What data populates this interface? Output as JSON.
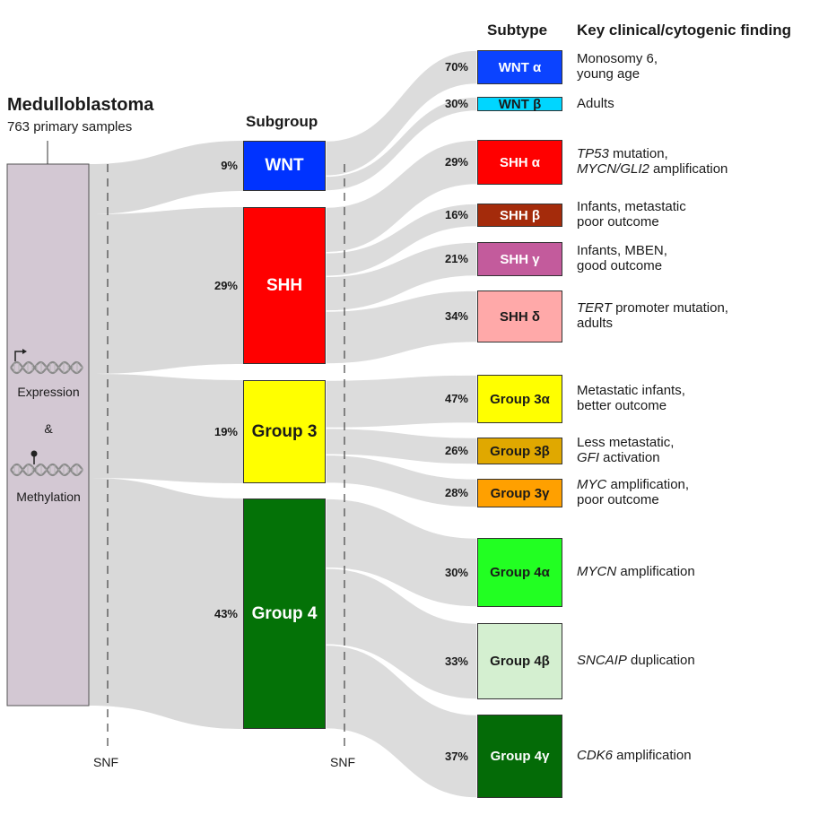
{
  "title": "Medulloblastoma",
  "subtitle": "763 primary samples",
  "headers": {
    "subgroup": "Subgroup",
    "subtype": "Subtype",
    "finding": "Key clinical/cytogenic finding"
  },
  "snf_label": "SNF",
  "left_labels": {
    "expression": "Expression",
    "ampersand": "&",
    "methylation": "Methylation"
  },
  "subgroups": [
    {
      "name": "WNT",
      "pct": "9%",
      "color": "#0033ff",
      "text_color": "#ffffff"
    },
    {
      "name": "SHH",
      "pct": "29%",
      "color": "#ff0000",
      "text_color": "#ffffff"
    },
    {
      "name": "Group 3",
      "pct": "19%",
      "color": "#ffff00",
      "text_color": "#1a1a1a"
    },
    {
      "name": "Group 4",
      "pct": "43%",
      "color": "#047207",
      "text_color": "#ffffff"
    }
  ],
  "subtypes": [
    {
      "name": "WNT α",
      "pct": "70%",
      "color": "#0b43ff",
      "text_color": "#ffffff",
      "finding": [
        {
          "text": "Monosomy 6,"
        },
        {
          "text": "young age"
        }
      ]
    },
    {
      "name": "WNT β",
      "pct": "30%",
      "color": "#00d6ff",
      "text_color": "#1a1a1a",
      "finding": [
        {
          "text": "Adults"
        }
      ]
    },
    {
      "name": "SHH α",
      "pct": "29%",
      "color": "#ff0000",
      "text_color": "#ffffff",
      "finding": [
        {
          "italic": "TP53",
          "text": " mutation,"
        },
        {
          "italic": "MYCN/GLI2",
          "text": " amplification"
        }
      ]
    },
    {
      "name": "SHH β",
      "pct": "16%",
      "color": "#a42b0b",
      "text_color": "#ffffff",
      "finding": [
        {
          "text": "Infants,  metastatic"
        },
        {
          "text": "poor outcome"
        }
      ]
    },
    {
      "name": "SHH γ",
      "pct": "21%",
      "color": "#c35b9c",
      "text_color": "#ffffff",
      "finding": [
        {
          "text": "Infants, MBEN,"
        },
        {
          "text": "good outcome"
        }
      ]
    },
    {
      "name": "SHH δ",
      "pct": "34%",
      "color": "#ffa9a9",
      "text_color": "#1a1a1a",
      "finding": [
        {
          "italic": "TERT",
          "text": " promoter  mutation,"
        },
        {
          "text": "adults"
        }
      ]
    },
    {
      "name": "Group 3α",
      "pct": "47%",
      "color": "#ffff00",
      "text_color": "#1a1a1a",
      "finding": [
        {
          "text": "Metastatic infants,"
        },
        {
          "text": "better outcome"
        }
      ]
    },
    {
      "name": "Group 3β",
      "pct": "26%",
      "color": "#e0a800",
      "text_color": "#1a1a1a",
      "finding": [
        {
          "text": "Less metastatic,"
        },
        {
          "italic": "GFI",
          "text": " activation"
        }
      ]
    },
    {
      "name": "Group 3γ",
      "pct": "28%",
      "color": "#ffa000",
      "text_color": "#1a1a1a",
      "finding": [
        {
          "italic": "MYC",
          "text": " amplification,"
        },
        {
          "text": "poor outcome"
        }
      ]
    },
    {
      "name": "Group 4α",
      "pct": "30%",
      "color": "#22ff22",
      "text_color": "#1a1a1a",
      "finding": [
        {
          "italic": "MYCN",
          "text": " amplification"
        }
      ]
    },
    {
      "name": "Group 4β",
      "pct": "33%",
      "color": "#d4efd0",
      "text_color": "#1a1a1a",
      "finding": [
        {
          "italic": "SNCAIP",
          "text": " duplication"
        }
      ]
    },
    {
      "name": "Group 4γ",
      "pct": "37%",
      "color": "#046b07",
      "text_color": "#ffffff",
      "finding": [
        {
          "italic": "CDK6",
          "text": " amplification"
        }
      ]
    }
  ]
}
